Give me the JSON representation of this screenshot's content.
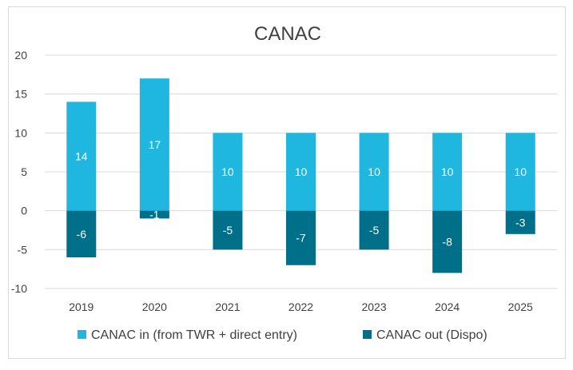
{
  "chart_data": {
    "type": "bar",
    "title": "CANAC",
    "categories": [
      "2019",
      "2020",
      "2021",
      "2022",
      "2023",
      "2024",
      "2025"
    ],
    "series": [
      {
        "name": "CANAC in (from TWR + direct entry)",
        "values": [
          14,
          17,
          10,
          10,
          10,
          10,
          10
        ],
        "color": "#1fb7e0"
      },
      {
        "name": "CANAC out (Dispo)",
        "values": [
          -6,
          -1,
          -5,
          -7,
          -5,
          -8,
          -3
        ],
        "color": "#006f8a"
      }
    ],
    "ylim": [
      -10,
      20
    ],
    "yticks": [
      "20",
      "15",
      "10",
      "5",
      "0",
      "-5",
      "-10"
    ],
    "grid": true,
    "stacked": true,
    "legend_position": "bottom"
  }
}
